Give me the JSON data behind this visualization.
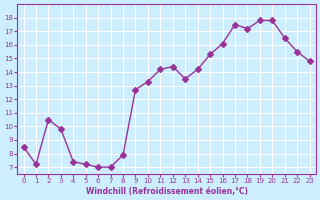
{
  "x": [
    0,
    1,
    2,
    3,
    4,
    5,
    6,
    7,
    8,
    9,
    10,
    11,
    12,
    13,
    14,
    15,
    16,
    17,
    18,
    19,
    20,
    21,
    22,
    23
  ],
  "y": [
    8.5,
    7.2,
    10.5,
    9.8,
    7.4,
    7.2,
    7.0,
    7.0,
    7.9,
    12.7,
    13.3,
    14.2,
    14.4,
    13.5,
    14.2,
    15.3,
    16.1,
    17.5,
    17.2,
    17.8,
    17.8,
    16.5,
    15.5,
    14.8
  ],
  "line_color": "#993399",
  "marker": "D",
  "marker_size": 3,
  "bg_color": "#cceeff",
  "grid_color": "#ffffff",
  "xlabel": "Windchill (Refroidissement éolien,°C)",
  "xlabel_color": "#993399",
  "tick_color": "#993399",
  "ylim": [
    6.5,
    19
  ],
  "xlim": [
    -0.5,
    23.5
  ],
  "yticks": [
    7,
    8,
    9,
    10,
    11,
    12,
    13,
    14,
    15,
    16,
    17,
    18
  ],
  "xticks": [
    0,
    1,
    2,
    3,
    4,
    5,
    6,
    7,
    8,
    9,
    10,
    11,
    12,
    13,
    14,
    15,
    16,
    17,
    18,
    19,
    20,
    21,
    22,
    23
  ]
}
